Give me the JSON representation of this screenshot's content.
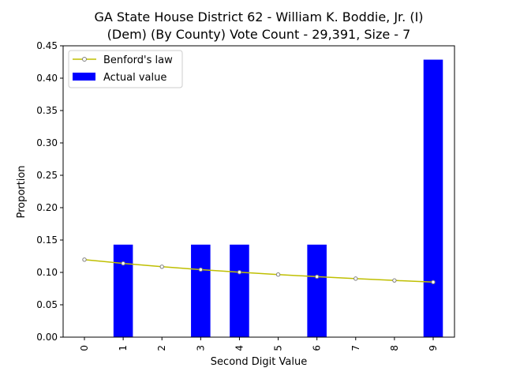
{
  "chart_data": {
    "type": "bar",
    "title_line1": "GA State House District 62 - William K. Boddie, Jr. (I)",
    "title_line2": "(Dem) (By County) Vote Count - 29,391, Size - 7",
    "xlabel": "Second Digit Value",
    "ylabel": "Proportion",
    "categories": [
      "0",
      "1",
      "2",
      "3",
      "4",
      "5",
      "6",
      "7",
      "8",
      "9"
    ],
    "ylim": [
      0,
      0.45
    ],
    "yticks": [
      "0.00",
      "0.05",
      "0.10",
      "0.15",
      "0.20",
      "0.25",
      "0.30",
      "0.35",
      "0.40",
      "0.45"
    ],
    "legend_position": "top-left",
    "grid": false,
    "series": [
      {
        "name": "Benford's law",
        "kind": "line",
        "color": "#bfbf00",
        "values": [
          0.1197,
          0.1139,
          0.1088,
          0.1043,
          0.1003,
          0.0967,
          0.0934,
          0.0904,
          0.0876,
          0.085
        ]
      },
      {
        "name": "Actual value",
        "kind": "bar",
        "color": "#0000ff",
        "values": [
          0,
          0.1429,
          0,
          0.1429,
          0.1429,
          0,
          0.1429,
          0,
          0,
          0.4286
        ]
      }
    ]
  }
}
